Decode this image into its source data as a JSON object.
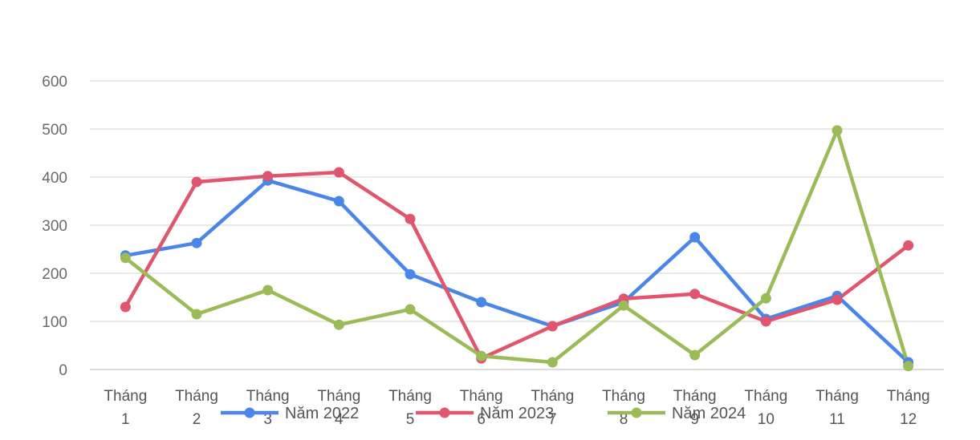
{
  "chart_data": {
    "type": "line",
    "title": "",
    "xlabel": "",
    "ylabel": "",
    "ylim": [
      0,
      600
    ],
    "yticks": [
      0,
      100,
      200,
      300,
      400,
      500,
      600
    ],
    "grid": true,
    "legend_position": "bottom",
    "categories": [
      [
        "Tháng",
        "1"
      ],
      [
        "Tháng",
        "2"
      ],
      [
        "Tháng",
        "3"
      ],
      [
        "Tháng",
        "4"
      ],
      [
        "Tháng",
        "5"
      ],
      [
        "Tháng",
        "6"
      ],
      [
        "Tháng",
        "7"
      ],
      [
        "Tháng",
        "8"
      ],
      [
        "Tháng",
        "9"
      ],
      [
        "Tháng",
        "10"
      ],
      [
        "Tháng",
        "11"
      ],
      [
        "Tháng",
        "12"
      ]
    ],
    "series": [
      {
        "name": "Năm 2022",
        "color": "#4a86e8",
        "values": [
          237,
          263,
          393,
          350,
          198,
          140,
          90,
          140,
          275,
          105,
          153,
          15
        ]
      },
      {
        "name": "Năm 2023",
        "color": "#e0566f",
        "values": [
          130,
          390,
          402,
          410,
          313,
          23,
          90,
          147,
          157,
          100,
          145,
          258
        ]
      },
      {
        "name": "Năm 2024",
        "color": "#9bbb59",
        "values": [
          232,
          115,
          165,
          93,
          125,
          28,
          15,
          133,
          30,
          148,
          497,
          7
        ]
      }
    ]
  }
}
